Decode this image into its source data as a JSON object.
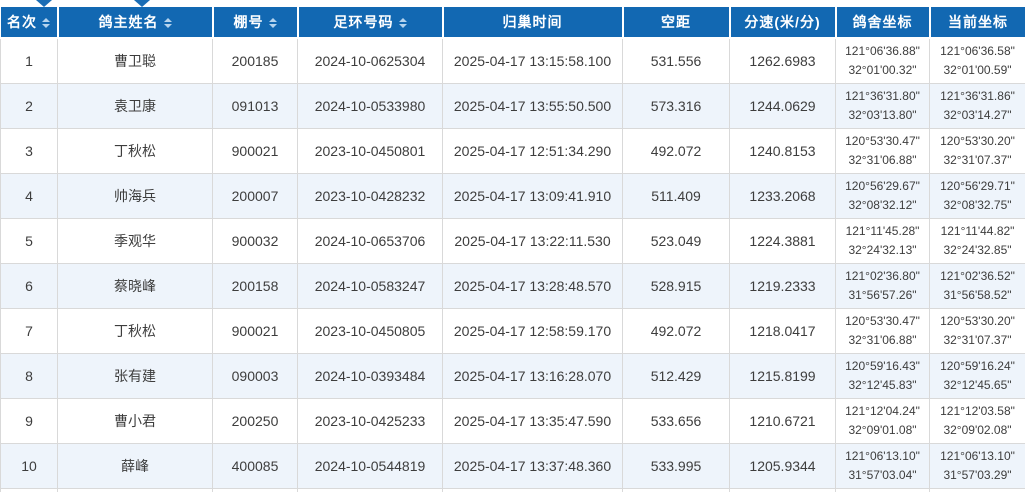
{
  "colors": {
    "header_bg": "#1268b2",
    "header_text": "#ffffff",
    "sort_icon": "#b5d4ee",
    "row_alt_bg": "#eef4fb",
    "cell_border": "#d9d9d9",
    "cell_text": "#3d3d3d",
    "top_arrow": "#1a6db5"
  },
  "top_strip": {
    "arrow_icon": "chevron-down-icon"
  },
  "table": {
    "columns": [
      {
        "key": "rank",
        "label": "名次",
        "sortable": true
      },
      {
        "key": "owner",
        "label": "鸽主姓名",
        "sortable": true
      },
      {
        "key": "loft_no",
        "label": "棚号",
        "sortable": true
      },
      {
        "key": "ring_no",
        "label": "足环号码",
        "sortable": true
      },
      {
        "key": "homing_time",
        "label": "归巢时间",
        "sortable": false
      },
      {
        "key": "distance",
        "label": "空距",
        "sortable": false
      },
      {
        "key": "speed",
        "label": "分速(米/分)",
        "sortable": false
      },
      {
        "key": "loft_coord",
        "label": "鸽舍坐标",
        "sortable": false
      },
      {
        "key": "current_coord",
        "label": "当前坐标",
        "sortable": false
      }
    ],
    "rows": [
      {
        "rank": "1",
        "owner": "曹卫聪",
        "loft_no": "200185",
        "ring_no": "2024-10-0625304",
        "homing_time": "2025-04-17 13:15:58.100",
        "distance": "531.556",
        "speed": "1262.6983",
        "loft_coord": [
          "121°06'36.88\"",
          "32°01'00.32\""
        ],
        "current_coord": [
          "121°06'36.58\"",
          "32°01'00.59\""
        ]
      },
      {
        "rank": "2",
        "owner": "袁卫康",
        "loft_no": "091013",
        "ring_no": "2024-10-0533980",
        "homing_time": "2025-04-17 13:55:50.500",
        "distance": "573.316",
        "speed": "1244.0629",
        "loft_coord": [
          "121°36'31.80\"",
          "32°03'13.80\""
        ],
        "current_coord": [
          "121°36'31.86\"",
          "32°03'14.27\""
        ]
      },
      {
        "rank": "3",
        "owner": "丁秋松",
        "loft_no": "900021",
        "ring_no": "2023-10-0450801",
        "homing_time": "2025-04-17 12:51:34.290",
        "distance": "492.072",
        "speed": "1240.8153",
        "loft_coord": [
          "120°53'30.47\"",
          "32°31'06.88\""
        ],
        "current_coord": [
          "120°53'30.20\"",
          "32°31'07.37\""
        ]
      },
      {
        "rank": "4",
        "owner": "帅海兵",
        "loft_no": "200007",
        "ring_no": "2023-10-0428232",
        "homing_time": "2025-04-17 13:09:41.910",
        "distance": "511.409",
        "speed": "1233.2068",
        "loft_coord": [
          "120°56'29.67\"",
          "32°08'32.12\""
        ],
        "current_coord": [
          "120°56'29.71\"",
          "32°08'32.75\""
        ]
      },
      {
        "rank": "5",
        "owner": "季观华",
        "loft_no": "900032",
        "ring_no": "2024-10-0653706",
        "homing_time": "2025-04-17 13:22:11.530",
        "distance": "523.049",
        "speed": "1224.3881",
        "loft_coord": [
          "121°11'45.28\"",
          "32°24'32.13\""
        ],
        "current_coord": [
          "121°11'44.82\"",
          "32°24'32.85\""
        ]
      },
      {
        "rank": "6",
        "owner": "蔡晓峰",
        "loft_no": "200158",
        "ring_no": "2024-10-0583247",
        "homing_time": "2025-04-17 13:28:48.570",
        "distance": "528.915",
        "speed": "1219.2333",
        "loft_coord": [
          "121°02'36.80\"",
          "31°56'57.26\""
        ],
        "current_coord": [
          "121°02'36.52\"",
          "31°56'58.52\""
        ]
      },
      {
        "rank": "7",
        "owner": "丁秋松",
        "loft_no": "900021",
        "ring_no": "2023-10-0450805",
        "homing_time": "2025-04-17 12:58:59.170",
        "distance": "492.072",
        "speed": "1218.0417",
        "loft_coord": [
          "120°53'30.47\"",
          "32°31'06.88\""
        ],
        "current_coord": [
          "120°53'30.20\"",
          "32°31'07.37\""
        ]
      },
      {
        "rank": "8",
        "owner": "张有建",
        "loft_no": "090003",
        "ring_no": "2024-10-0393484",
        "homing_time": "2025-04-17 13:16:28.070",
        "distance": "512.429",
        "speed": "1215.8199",
        "loft_coord": [
          "120°59'16.43\"",
          "32°12'45.83\""
        ],
        "current_coord": [
          "120°59'16.24\"",
          "32°12'45.65\""
        ]
      },
      {
        "rank": "9",
        "owner": "曹小君",
        "loft_no": "200250",
        "ring_no": "2023-10-0425233",
        "homing_time": "2025-04-17 13:35:47.590",
        "distance": "533.656",
        "speed": "1210.6721",
        "loft_coord": [
          "121°12'04.24\"",
          "32°09'01.08\""
        ],
        "current_coord": [
          "121°12'03.58\"",
          "32°09'02.08\""
        ]
      },
      {
        "rank": "10",
        "owner": "薛峰",
        "loft_no": "400085",
        "ring_no": "2024-10-0544819",
        "homing_time": "2025-04-17 13:37:48.360",
        "distance": "533.995",
        "speed": "1205.9344",
        "loft_coord": [
          "121°06'13.10\"",
          "31°57'03.04\""
        ],
        "current_coord": [
          "121°06'13.10\"",
          "31°57'03.29\""
        ]
      }
    ]
  }
}
